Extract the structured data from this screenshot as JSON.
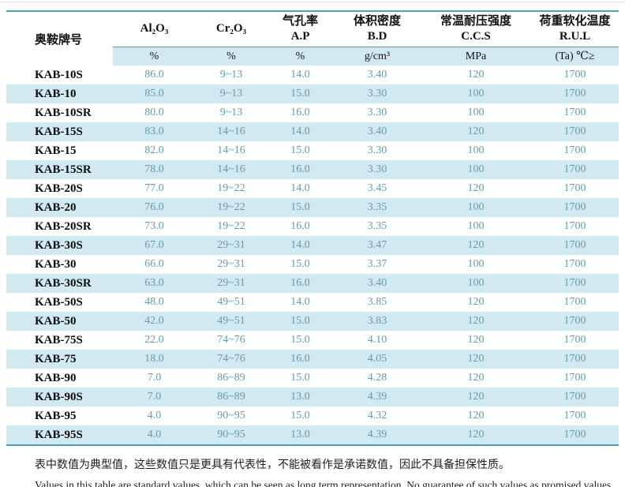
{
  "table": {
    "columns": [
      {
        "key": "brand",
        "line1": "奥鞍牌号",
        "line2": "",
        "unit": ""
      },
      {
        "key": "al2o3",
        "line1": "Al₂O₃",
        "line2": "",
        "unit": "%"
      },
      {
        "key": "cr2o3",
        "line1": "Cr₂O₃",
        "line2": "",
        "unit": "%"
      },
      {
        "key": "ap",
        "line1": "气孔率",
        "line2": "A.P",
        "unit": "%"
      },
      {
        "key": "bd",
        "line1": "体积密度",
        "line2": "B.D",
        "unit": "g/cm³"
      },
      {
        "key": "ccs",
        "line1": "常温耐压强度",
        "line2": "C.C.S",
        "unit": "MPa"
      },
      {
        "key": "rul",
        "line1": "荷重软化温度",
        "line2": "R.U.L",
        "unit": "(Ta) ℃≥"
      }
    ],
    "rows": [
      [
        "KAB-10S",
        "86.0",
        "9~13",
        "14.0",
        "3.40",
        "120",
        "1700"
      ],
      [
        "KAB-10",
        "85.0",
        "9~13",
        "15.0",
        "3.30",
        "100",
        "1700"
      ],
      [
        "KAB-10SR",
        "80.0",
        "9~13",
        "16.0",
        "3.30",
        "100",
        "1700"
      ],
      [
        "KAB-15S",
        "83.0",
        "14~16",
        "14.0",
        "3.40",
        "120",
        "1700"
      ],
      [
        "KAB-15",
        "82.0",
        "14~16",
        "15.0",
        "3.30",
        "100",
        "1700"
      ],
      [
        "KAB-15SR",
        "78.0",
        "14~16",
        "16.0",
        "3.30",
        "100",
        "1700"
      ],
      [
        "KAB-20S",
        "77.0",
        "19~22",
        "14.0",
        "3.45",
        "120",
        "1700"
      ],
      [
        "KAB-20",
        "76.0",
        "19~22",
        "15.0",
        "3.35",
        "100",
        "1700"
      ],
      [
        "KAB-20SR",
        "73.0",
        "19~22",
        "16.0",
        "3.35",
        "100",
        "1700"
      ],
      [
        "KAB-30S",
        "67.0",
        "29~31",
        "14.0",
        "3.47",
        "120",
        "1700"
      ],
      [
        "KAB-30",
        "66.0",
        "29~31",
        "15.0",
        "3.37",
        "100",
        "1700"
      ],
      [
        "KAB-30SR",
        "63.0",
        "29~31",
        "16.0",
        "3.40",
        "100",
        "1700"
      ],
      [
        "KAB-50S",
        "48.0",
        "49~51",
        "14.0",
        "3.85",
        "120",
        "1700"
      ],
      [
        "KAB-50",
        "42.0",
        "49~51",
        "15.0",
        "3.83",
        "120",
        "1700"
      ],
      [
        "KAB-75S",
        "22.0",
        "74~76",
        "15.0",
        "4.10",
        "120",
        "1700"
      ],
      [
        "KAB-75",
        "18.0",
        "74~76",
        "16.0",
        "4.05",
        "120",
        "1700"
      ],
      [
        "KAB-90",
        "7.0",
        "86~89",
        "15.0",
        "4.28",
        "120",
        "1700"
      ],
      [
        "KAB-90S",
        "7.0",
        "86~89",
        "13.0",
        "4.39",
        "120",
        "1700"
      ],
      [
        "KAB-95",
        "4.0",
        "90~95",
        "15.0",
        "4.32",
        "120",
        "1700"
      ],
      [
        "KAB-95S",
        "4.0",
        "90~95",
        "13.0",
        "4.39",
        "120",
        "1700"
      ]
    ]
  },
  "notes": {
    "zh": "表中数值为典型值，这些数值只是更具有代表性，不能被看作是承诺数值，因此不具备担保性质。",
    "en": "Values in this table are standard values, which can be seen as long term representation. No guarantee of such values as promised values."
  },
  "colors": {
    "accent_teal": "#4aa2ac",
    "row_alt_blue": "#d3e9f2",
    "value_text": "#679aac",
    "header_text": "#101010"
  }
}
